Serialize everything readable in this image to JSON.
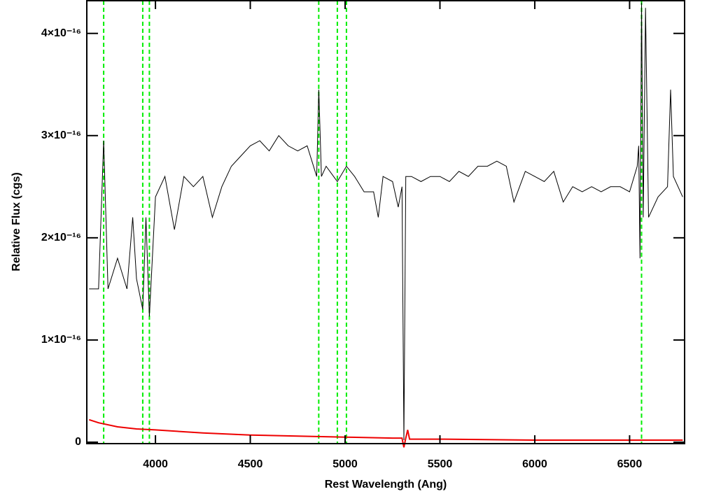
{
  "chart_data": {
    "type": "line",
    "xlabel": "Rest Wavelength (Ang)",
    "ylabel": "Relative Flux (cgs)",
    "xlim": [
      3638,
      6790
    ],
    "ylim": [
      -1.4e-18,
      4.32e-16
    ],
    "xticks": [
      4000,
      4500,
      5000,
      5500,
      6000,
      6500
    ],
    "yticks": [
      0,
      {
        "value": 1e-16,
        "label": "1×10⁻¹⁶"
      },
      {
        "value": 2e-16,
        "label": "2×10⁻¹⁶"
      },
      {
        "value": 3e-16,
        "label": "3×10⁻¹⁶"
      },
      {
        "value": 4e-16,
        "label": "4×10⁻¹⁶"
      }
    ],
    "reference_lines": [
      3727,
      3933,
      3968,
      4861,
      4959,
      5007,
      6563
    ],
    "reference_color": "#00ee00",
    "series": [
      {
        "color": "#000000",
        "x": [
          3650,
          3700,
          3727,
          3750,
          3800,
          3850,
          3880,
          3900,
          3933,
          3950,
          3968,
          4000,
          4050,
          4100,
          4150,
          4200,
          4250,
          4300,
          4350,
          4400,
          4450,
          4500,
          4550,
          4600,
          4650,
          4700,
          4750,
          4800,
          4850,
          4861,
          4875,
          4900,
          4959,
          5007,
          5050,
          5100,
          5150,
          5175,
          5200,
          5250,
          5280,
          5300,
          5310,
          5320,
          5350,
          5400,
          5450,
          5500,
          5550,
          5600,
          5650,
          5700,
          5750,
          5800,
          5850,
          5890,
          5950,
          6000,
          6050,
          6100,
          6150,
          6200,
          6250,
          6300,
          6350,
          6400,
          6450,
          6500,
          6540,
          6548,
          6555,
          6563,
          6572,
          6584,
          6600,
          6650,
          6700,
          6716,
          6731,
          6780
        ],
        "values": [
          1.5e-16,
          1.5e-16,
          2.95e-16,
          1.5e-16,
          1.8e-16,
          1.5e-16,
          2.2e-16,
          1.6e-16,
          1.3e-16,
          2.2e-16,
          1.23e-16,
          2.4e-16,
          2.6e-16,
          2.08e-16,
          2.6e-16,
          2.5e-16,
          2.6e-16,
          2.2e-16,
          2.5e-16,
          2.7e-16,
          2.8e-16,
          2.9e-16,
          2.95e-16,
          2.85e-16,
          3e-16,
          2.9e-16,
          2.85e-16,
          2.9e-16,
          2.6e-16,
          3.45e-16,
          2.6e-16,
          2.7e-16,
          2.55e-16,
          2.7e-16,
          2.6e-16,
          2.45e-16,
          2.45e-16,
          2.2e-16,
          2.6e-16,
          2.55e-16,
          2.3e-16,
          2.5e-16,
          2e-18,
          2.6e-16,
          2.6e-16,
          2.55e-16,
          2.6e-16,
          2.6e-16,
          2.55e-16,
          2.65e-16,
          2.6e-16,
          2.7e-16,
          2.7e-16,
          2.75e-16,
          2.7e-16,
          2.35e-16,
          2.65e-16,
          2.6e-16,
          2.55e-16,
          2.65e-16,
          2.35e-16,
          2.5e-16,
          2.45e-16,
          2.5e-16,
          2.45e-16,
          2.5e-16,
          2.5e-16,
          2.45e-16,
          2.7e-16,
          2.9e-16,
          1.8e-16,
          4.3e-16,
          2.2e-16,
          4.25e-16,
          2.2e-16,
          2.4e-16,
          2.5e-16,
          3.45e-16,
          2.6e-16,
          2.4e-16
        ]
      },
      {
        "color": "#ee0000",
        "x": [
          3650,
          3700,
          3800,
          3900,
          4000,
          4250,
          4500,
          4750,
          5000,
          5250,
          5300,
          5310,
          5320,
          5330,
          5340,
          5500,
          6000,
          6780
        ],
        "values": [
          2.2e-17,
          1.9e-17,
          1.5e-17,
          1.3e-17,
          1.2e-17,
          9e-18,
          7e-18,
          6e-18,
          5e-18,
          4e-18,
          4e-18,
          -5e-18,
          4e-18,
          1.2e-17,
          3e-18,
          3e-18,
          2e-18,
          2e-18
        ]
      }
    ]
  }
}
